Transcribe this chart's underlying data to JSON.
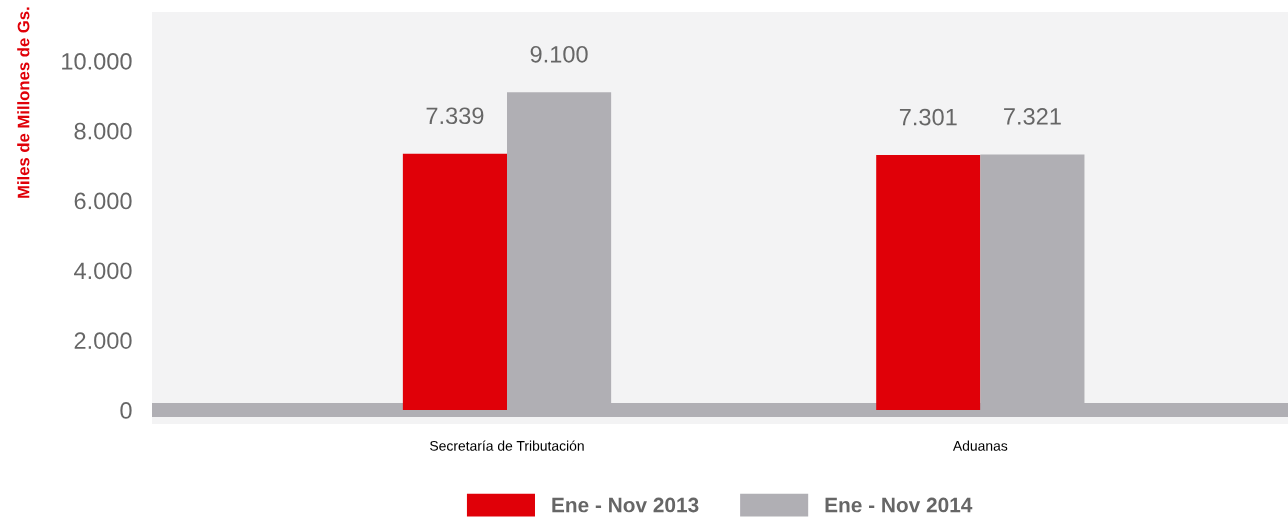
{
  "chart_data": {
    "type": "bar",
    "ylabel": "Miles de Millones de Gs.",
    "categories": [
      "Secretaría de Tributación",
      "Aduanas"
    ],
    "series": [
      {
        "name": "Ene - Nov 2013",
        "color": "#e00008",
        "values": [
          7339,
          7301
        ],
        "value_labels": [
          "7.339",
          "7.301"
        ]
      },
      {
        "name": "Ene - Nov 2014",
        "color": "#b0afb4",
        "values": [
          9100,
          7321
        ],
        "value_labels": [
          "9.100",
          "7.321"
        ]
      }
    ],
    "ylim": [
      -400,
      11400
    ],
    "yticks": [
      {
        "value": 0,
        "label": "0"
      },
      {
        "value": 2000,
        "label": "2.000"
      },
      {
        "value": 4000,
        "label": "4.000"
      },
      {
        "value": 6000,
        "label": "6.000"
      },
      {
        "value": 8000,
        "label": "8.000"
      },
      {
        "value": 10000,
        "label": "10.000"
      }
    ],
    "legend": "bottom"
  }
}
